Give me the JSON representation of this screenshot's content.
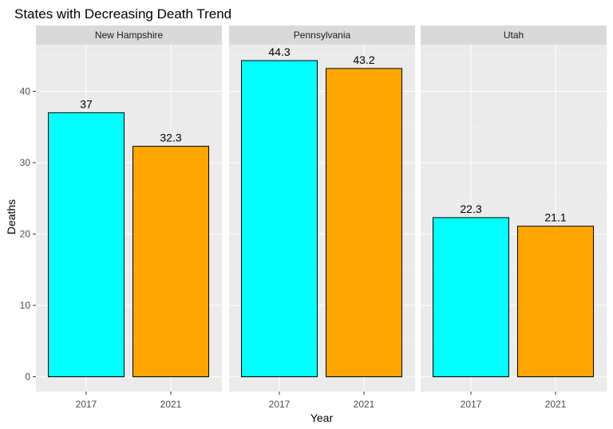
{
  "chart_data": {
    "type": "bar",
    "title": "States with Decreasing Death Trend",
    "xlabel": "Year",
    "ylabel": "Deaths",
    "ylim": [
      0,
      47
    ],
    "yticks": [
      0,
      10,
      20,
      30,
      40
    ],
    "categories": [
      "2017",
      "2021"
    ],
    "colors": {
      "2017": "#00FFFF",
      "2021": "#FFA500"
    },
    "grid": true,
    "legend": "none",
    "facets": [
      {
        "name": "New Hampshire",
        "values": [
          37,
          32.3
        ],
        "labels": [
          "37",
          "32.3"
        ]
      },
      {
        "name": "Pennsylvania",
        "values": [
          44.3,
          43.2
        ],
        "labels": [
          "44.3",
          "43.2"
        ]
      },
      {
        "name": "Utah",
        "values": [
          22.3,
          21.1
        ],
        "labels": [
          "22.3",
          "21.1"
        ]
      }
    ]
  }
}
